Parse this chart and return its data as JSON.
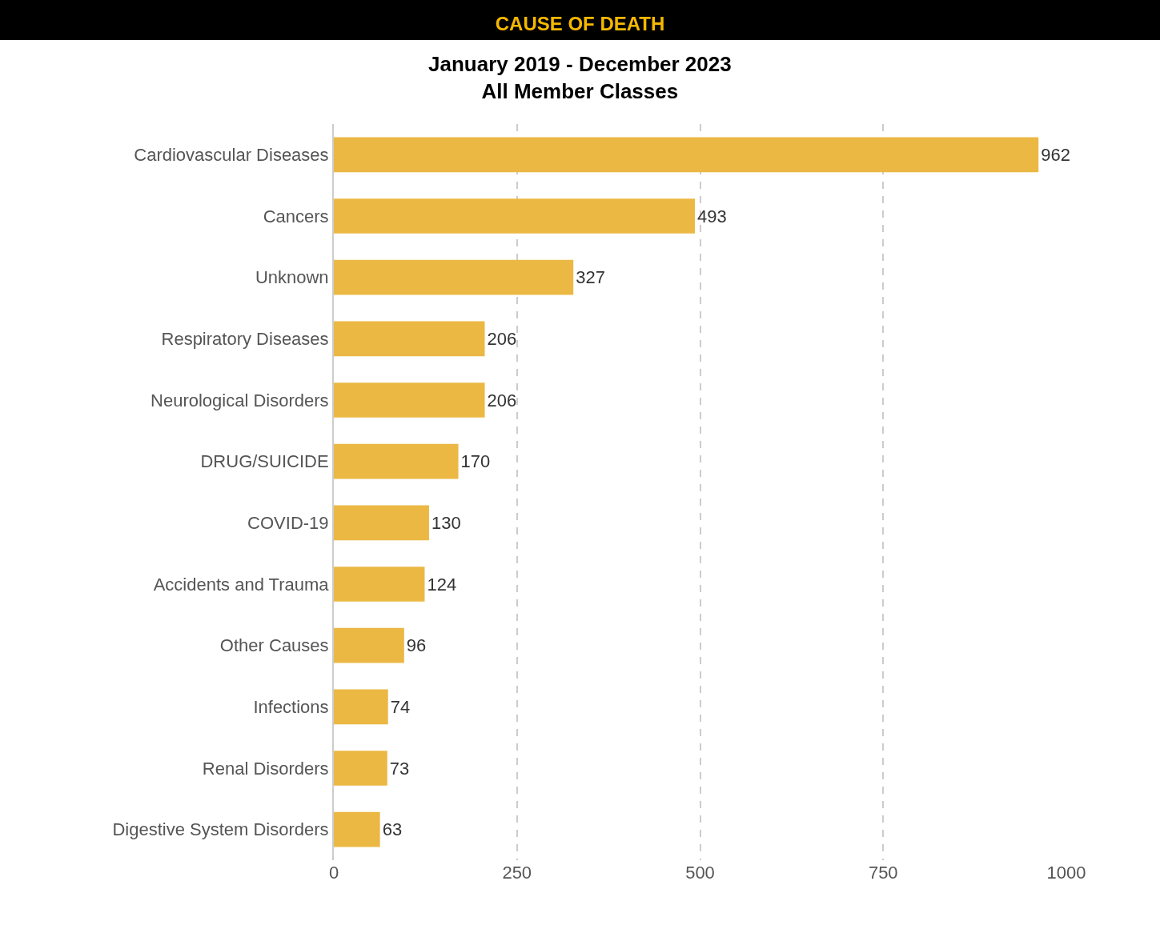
{
  "chart_data": {
    "type": "bar",
    "orientation": "horizontal",
    "title": "CAUSE OF DEATH",
    "subtitle": "January 2019 - December 2023\nAll Member Classes",
    "categories": [
      "Cardiovascular Diseases",
      "Cancers",
      "Unknown",
      "Respiratory Diseases",
      "Neurological Disorders",
      "DRUG/SUICIDE",
      "COVID-19",
      "Accidents and Trauma",
      "Other Causes",
      "Infections",
      "Renal Disorders",
      "Digestive System Disorders"
    ],
    "values": [
      962,
      493,
      327,
      206,
      206,
      170,
      130,
      124,
      96,
      74,
      73,
      63
    ],
    "color": "#ebb843",
    "xlim": [
      0,
      1000
    ],
    "xticks": [
      0,
      250,
      500,
      750,
      1000
    ],
    "grid": "x",
    "data_labels": true
  }
}
